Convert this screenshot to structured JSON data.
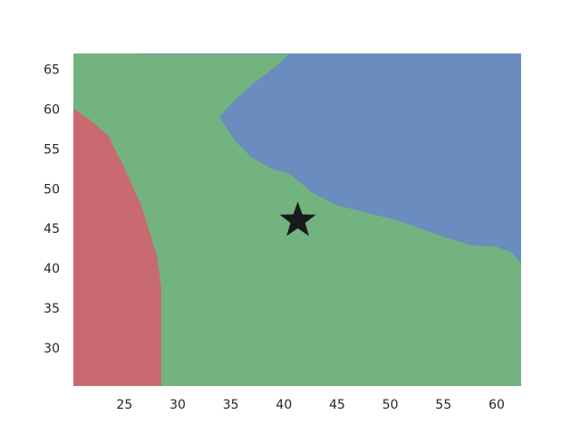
{
  "chart_data": {
    "type": "heatmap",
    "subtype": "decision-boundary contour plot",
    "title": "",
    "xlabel": "",
    "ylabel": "",
    "xlim": [
      20.2,
      62.3
    ],
    "ylim": [
      25.2,
      67.0
    ],
    "x_ticks": [
      25,
      30,
      35,
      40,
      45,
      50,
      55,
      60
    ],
    "y_ticks": [
      30,
      35,
      40,
      45,
      50,
      55,
      60,
      65
    ],
    "grid": false,
    "legend": "none",
    "regions": [
      {
        "class": "red",
        "color": "#c96a70",
        "boundary": [
          [
            20.2,
            60.0
          ],
          [
            21.5,
            58.8
          ],
          [
            23.5,
            56.5
          ],
          [
            24.0,
            55.0
          ],
          [
            24.8,
            53.0
          ],
          [
            25.8,
            50.0
          ],
          [
            26.5,
            48.0
          ],
          [
            27.3,
            44.5
          ],
          [
            28.0,
            41.5
          ],
          [
            28.4,
            37.5
          ],
          [
            28.4,
            25.2
          ],
          [
            20.2,
            25.2
          ]
        ]
      },
      {
        "class": "blue",
        "color": "#6a8cbf",
        "boundary": [
          [
            26.3,
            67.0
          ],
          [
            62.3,
            67.0
          ],
          [
            62.3,
            40.7
          ],
          [
            61.5,
            42.0
          ],
          [
            60.0,
            42.8
          ],
          [
            57.5,
            43.0
          ],
          [
            54.0,
            44.5
          ],
          [
            51.0,
            46.0
          ],
          [
            48.0,
            47.0
          ],
          [
            45.0,
            48.0
          ],
          [
            42.8,
            49.5
          ],
          [
            40.5,
            52.0
          ],
          [
            39.0,
            52.5
          ],
          [
            37.0,
            54.0
          ],
          [
            35.5,
            56.0
          ],
          [
            34.5,
            58.0
          ],
          [
            34.0,
            59.0
          ],
          [
            35.0,
            60.5
          ],
          [
            37.0,
            63.0
          ],
          [
            39.0,
            65.0
          ],
          [
            40.7,
            67.0
          ]
        ]
      },
      {
        "class": "green",
        "color": "#72b37f",
        "note_fill": "background"
      }
    ],
    "marker": {
      "symbol": "star",
      "x": 41.3,
      "y": 46.0,
      "color": "#1a1a1a"
    }
  }
}
